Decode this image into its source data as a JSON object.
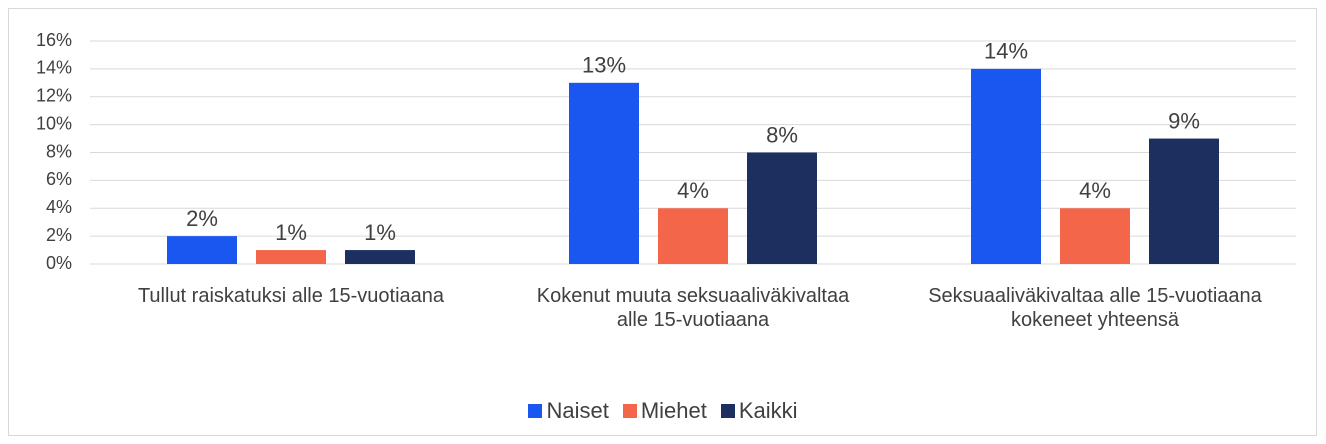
{
  "chart_data": {
    "type": "bar",
    "categories": [
      "Tullut raiskatuksi alle 15-vuotiaana",
      "Kokenut muuta seksuaaliväkivaltaa alle 15-vuotiaana",
      "Seksuaaliväkivaltaa alle 15-vuotiaana kokeneet yhteensä"
    ],
    "series": [
      {
        "name": "Naiset",
        "color": "#1a56f0",
        "values": [
          2,
          13,
          14
        ],
        "value_labels": [
          "2%",
          "13%",
          "14%"
        ]
      },
      {
        "name": "Miehet",
        "color": "#f4664a",
        "values": [
          1,
          4,
          4
        ],
        "value_labels": [
          "1%",
          "4%",
          "4%"
        ]
      },
      {
        "name": "Kaikki",
        "color": "#1c2f5e",
        "values": [
          1,
          8,
          9
        ],
        "value_labels": [
          "1%",
          "8%",
          "9%"
        ]
      }
    ],
    "ylim": [
      0,
      16
    ],
    "yticks": [
      {
        "value": 0,
        "label": "0%"
      },
      {
        "value": 2,
        "label": "2%"
      },
      {
        "value": 4,
        "label": "4%"
      },
      {
        "value": 6,
        "label": "6%"
      },
      {
        "value": 8,
        "label": "8%"
      },
      {
        "value": 10,
        "label": "10%"
      },
      {
        "value": 12,
        "label": "12%"
      },
      {
        "value": 14,
        "label": "14%"
      },
      {
        "value": 16,
        "label": "16%"
      }
    ],
    "grid": true,
    "legend": "bottom"
  }
}
